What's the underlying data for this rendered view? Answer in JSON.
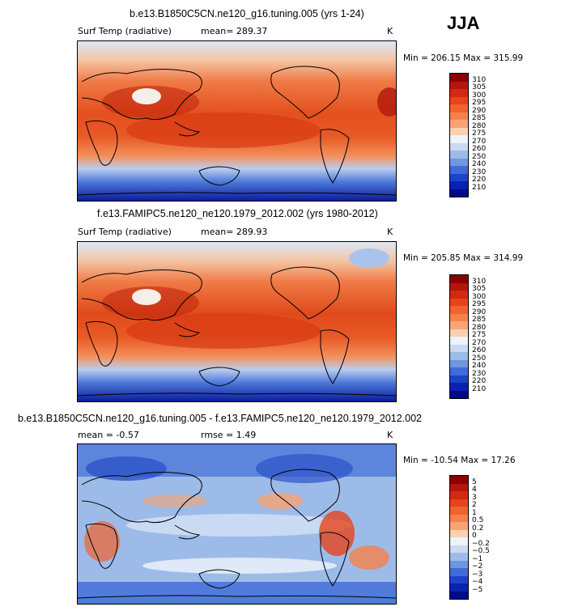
{
  "season": "JJA",
  "panels": [
    {
      "title": "b.e13.B1850C5CN.ne120_g16.tuning.005 (yrs 1-24)",
      "left_label": "Surf Temp (radiative)",
      "center_label": "mean=  289.37",
      "right_label": "K",
      "minmax": "Min = 206.15 Max = 315.99",
      "colorbar": {
        "labels": [
          "310",
          "305",
          "300",
          "295",
          "290",
          "285",
          "280",
          "275",
          "270",
          "260",
          "250",
          "240",
          "230",
          "220",
          "210"
        ],
        "colors": [
          "#8b0000",
          "#b3170b",
          "#d12a10",
          "#e6441c",
          "#f0622e",
          "#f6824b",
          "#f9a473",
          "#fbd0b0",
          "#eef2fb",
          "#c9daf3",
          "#9dbbe9",
          "#6f97df",
          "#3f6cd6",
          "#1d43c9",
          "#0a22b0",
          "#000a8a"
        ]
      }
    },
    {
      "title": "f.e13.FAMIPC5.ne120_ne120.1979_2012.002 (yrs 1980-2012)",
      "left_label": "Surf Temp (radiative)",
      "center_label": "mean=  289.93",
      "right_label": "K",
      "minmax": "Min = 205.85 Max = 314.99",
      "colorbar": {
        "labels": [
          "310",
          "305",
          "300",
          "295",
          "290",
          "285",
          "280",
          "275",
          "270",
          "260",
          "250",
          "240",
          "230",
          "220",
          "210"
        ],
        "colors": [
          "#8b0000",
          "#b3170b",
          "#d12a10",
          "#e6441c",
          "#f0622e",
          "#f6824b",
          "#f9a473",
          "#fbd0b0",
          "#eef2fb",
          "#c9daf3",
          "#9dbbe9",
          "#6f97df",
          "#3f6cd6",
          "#1d43c9",
          "#0a22b0",
          "#000a8a"
        ]
      }
    },
    {
      "title": "b.e13.B1850C5CN.ne120_g16.tuning.005 - f.e13.FAMIPC5.ne120_ne120.1979_2012.002",
      "left_label": "mean =   -0.57",
      "center_label": "rmse =    1.49",
      "right_label": "K",
      "minmax": "Min = -10.54 Max =   17.26",
      "colorbar": {
        "labels": [
          "5",
          "4",
          "3",
          "2",
          "1",
          "0.5",
          "0.2",
          "0",
          "−0.2",
          "−0.5",
          "−1",
          "−2",
          "−3",
          "−4",
          "−5"
        ],
        "colors": [
          "#8b0000",
          "#b3170b",
          "#d12a10",
          "#e6441c",
          "#f0622e",
          "#f6824b",
          "#f9a473",
          "#fbd0b0",
          "#eef2fb",
          "#c9daf3",
          "#9dbbe9",
          "#6f97df",
          "#3f6cd6",
          "#1d43c9",
          "#0a22b0",
          "#000a8a"
        ]
      }
    }
  ]
}
